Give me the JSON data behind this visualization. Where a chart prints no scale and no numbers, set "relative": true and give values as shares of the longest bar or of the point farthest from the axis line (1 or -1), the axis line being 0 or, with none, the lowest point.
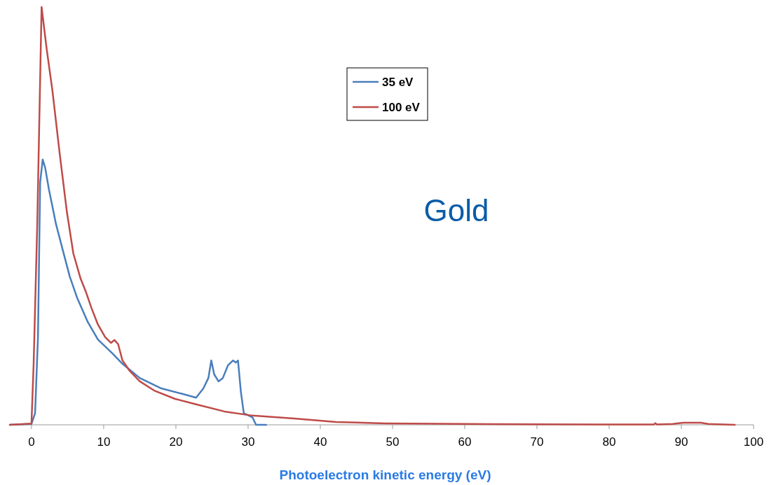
{
  "chart_data": {
    "type": "line",
    "relative": true,
    "xlabel": "Photoelectron kinetic energy (eV)",
    "annotations": [
      "Gold"
    ],
    "xlim": [
      -3,
      100
    ],
    "xticks": [
      0,
      10,
      20,
      30,
      40,
      50,
      60,
      70,
      80,
      90,
      100
    ],
    "legend": "top",
    "grid": false,
    "marker": "none",
    "line_style": "solid",
    "series": [
      {
        "name": "35 eV",
        "color": "#4a7ebb",
        "x": [
          -3,
          0,
          0.5,
          0.9,
          1.2,
          1.55,
          1.9,
          2.4,
          3.4,
          4.4,
          5.3,
          6.3,
          7.8,
          9.2,
          11.2,
          12.6,
          15,
          18,
          20.9,
          22.8,
          23.8,
          24.5,
          24.9,
          25.3,
          25.9,
          26.5,
          27.2,
          27.9,
          28.3,
          28.6,
          29,
          29.4,
          30.6,
          31.1,
          32.5
        ],
        "values": [
          0,
          0.002,
          0.028,
          0.21,
          0.58,
          0.635,
          0.615,
          0.565,
          0.48,
          0.414,
          0.355,
          0.305,
          0.246,
          0.204,
          0.171,
          0.146,
          0.112,
          0.087,
          0.074,
          0.065,
          0.087,
          0.112,
          0.154,
          0.121,
          0.104,
          0.112,
          0.142,
          0.154,
          0.149,
          0.154,
          0.079,
          0.028,
          0.018,
          0,
          0
        ]
      },
      {
        "name": "100 eV",
        "color": "#be4b48",
        "x": [
          -3,
          0,
          0.3,
          0.5,
          0.8,
          1.4,
          2.1,
          2.9,
          3.9,
          4.9,
          5.8,
          6.8,
          7.5,
          8.3,
          9.2,
          10.2,
          11,
          11.5,
          12,
          12.6,
          13.6,
          15,
          17,
          19.9,
          22.8,
          26.7,
          30.6,
          36.4,
          42.2,
          49,
          63.6,
          78,
          86.2,
          86.4,
          86.6,
          88.8,
          90.3,
          92.7,
          93.7,
          97.4
        ],
        "values": [
          0,
          0.003,
          0.146,
          0.28,
          0.48,
          1,
          0.9,
          0.8,
          0.65,
          0.51,
          0.41,
          0.35,
          0.32,
          0.28,
          0.24,
          0.21,
          0.196,
          0.203,
          0.193,
          0.154,
          0.129,
          0.104,
          0.082,
          0.062,
          0.049,
          0.032,
          0.022,
          0.015,
          0.0067,
          0.0034,
          0.0017,
          0.001,
          0.001,
          0.004,
          0.001,
          0.002,
          0.005,
          0.005,
          0.002,
          0
        ]
      }
    ]
  }
}
